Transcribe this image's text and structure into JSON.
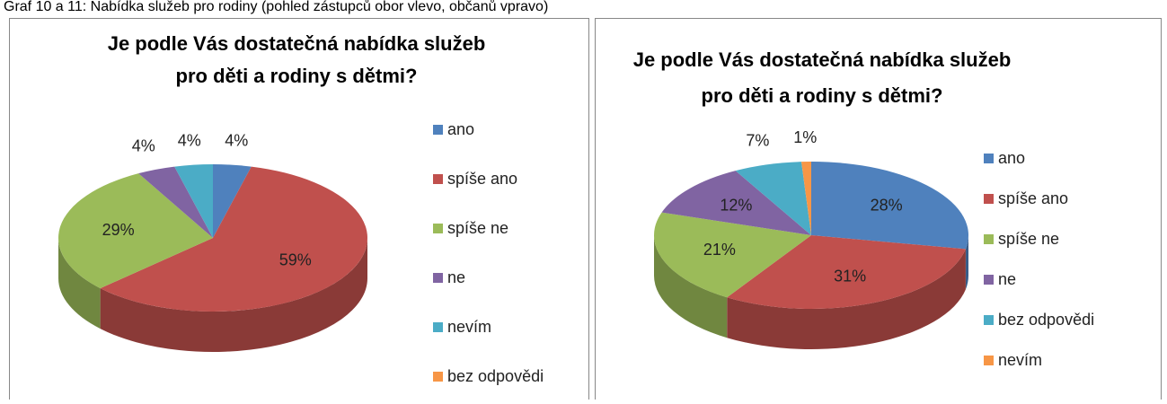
{
  "caption": "Graf 10 a 11: Nabídka služeb pro rodiny (pohled zástupců obor vlevo, občanů vpravo)",
  "chart_data": [
    {
      "type": "pie",
      "title": [
        "Je podle Vás dostatečná nabídka služeb",
        "pro děti a rodiny s dětmi?"
      ],
      "categories": [
        "ano",
        "spíše ano",
        "spíše ne",
        "ne",
        "nevím",
        "bez odpovědi"
      ],
      "values": [
        4,
        59,
        29,
        4,
        4,
        0
      ],
      "value_labels": [
        "4%",
        "59%",
        "29%",
        "4%",
        "4%",
        null
      ],
      "colors": [
        "#4f81bd",
        "#c0504d",
        "#9bbb59",
        "#8064a2",
        "#4bacc6",
        "#f79646"
      ],
      "legend": "right"
    },
    {
      "type": "pie",
      "title": [
        "Je podle Vás dostatečná nabídka služeb",
        "pro děti a rodiny s dětmi?"
      ],
      "categories": [
        "ano",
        "spíše ano",
        "spíše ne",
        "ne",
        "bez odpovědi",
        "nevím"
      ],
      "values": [
        28,
        31,
        21,
        12,
        7,
        1
      ],
      "value_labels": [
        "28%",
        "31%",
        "21%",
        "12%",
        "7%",
        "1%"
      ],
      "colors": [
        "#4f81bd",
        "#c0504d",
        "#9bbb59",
        "#8064a2",
        "#4bacc6",
        "#f79646"
      ],
      "legend": "right"
    }
  ]
}
